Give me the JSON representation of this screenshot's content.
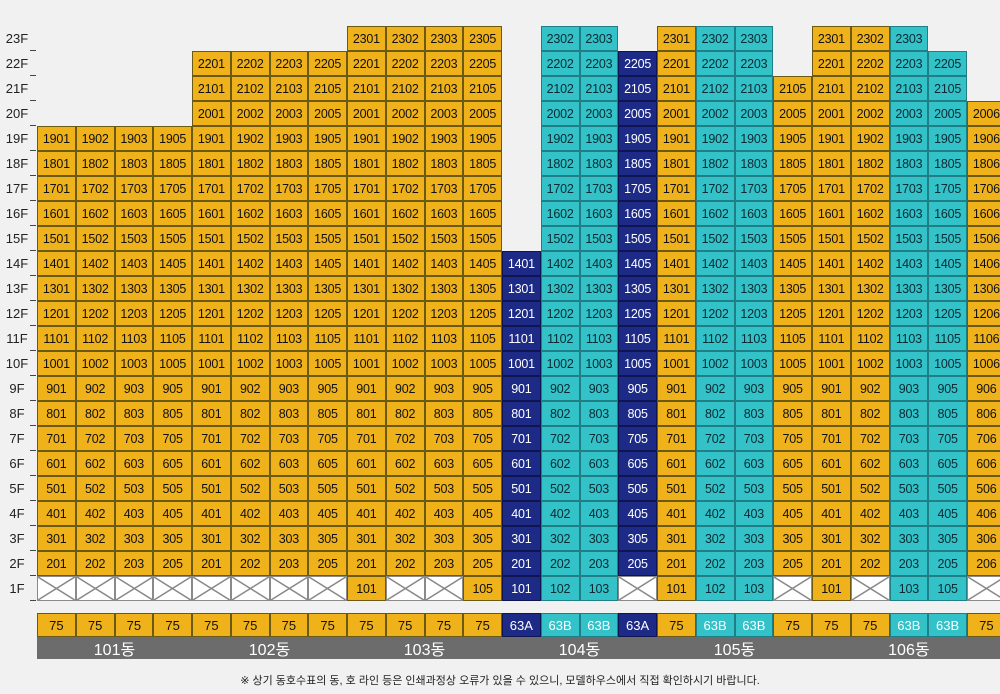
{
  "floor_labels": [
    "1F",
    "2F",
    "3F",
    "4F",
    "5F",
    "6F",
    "7F",
    "8F",
    "9F",
    "10F",
    "11F",
    "12F",
    "13F",
    "14F",
    "15F",
    "16F",
    "17F",
    "18F",
    "19F",
    "20F",
    "21F",
    "22F",
    "23F"
  ],
  "colors": {
    "orange": "#f0b21b",
    "cyan": "#33c2c8",
    "navy": "#1d2b86",
    "empty": "#ffffff",
    "name_bar": "#6c6c6c"
  },
  "buildings": [
    {
      "name": "101동",
      "columns": [
        {
          "line": "01",
          "type": "75",
          "unit_type_color": "o",
          "top": 19,
          "color": "o",
          "first_floor": "x"
        },
        {
          "line": "02",
          "type": "75",
          "unit_type_color": "o",
          "top": 19,
          "color": "o",
          "first_floor": "x"
        },
        {
          "line": "03",
          "type": "75",
          "unit_type_color": "o",
          "top": 19,
          "color": "o",
          "first_floor": "x"
        },
        {
          "line": "05",
          "type": "75",
          "unit_type_color": "o",
          "top": 19,
          "color": "o",
          "first_floor": "x"
        }
      ]
    },
    {
      "name": "102동",
      "columns": [
        {
          "line": "01",
          "type": "75",
          "unit_type_color": "o",
          "top": 22,
          "color": "o",
          "first_floor": "x"
        },
        {
          "line": "02",
          "type": "75",
          "unit_type_color": "o",
          "top": 22,
          "color": "o",
          "first_floor": "x"
        },
        {
          "line": "03",
          "type": "75",
          "unit_type_color": "o",
          "top": 22,
          "color": "o",
          "first_floor": "x"
        },
        {
          "line": "05",
          "type": "75",
          "unit_type_color": "o",
          "top": 22,
          "color": "o",
          "first_floor": "x"
        }
      ]
    },
    {
      "name": "103동",
      "columns": [
        {
          "line": "01",
          "type": "75",
          "unit_type_color": "o",
          "top": 23,
          "color": "o",
          "first_floor": "unit"
        },
        {
          "line": "02",
          "type": "75",
          "unit_type_color": "o",
          "top": 23,
          "color": "o",
          "first_floor": "x"
        },
        {
          "line": "03",
          "type": "75",
          "unit_type_color": "o",
          "top": 23,
          "color": "o",
          "first_floor": "x"
        },
        {
          "line": "05",
          "type": "75",
          "unit_type_color": "o",
          "top": 23,
          "color": "o",
          "first_floor": "unit"
        }
      ]
    },
    {
      "name": "104동",
      "columns": [
        {
          "line": "01",
          "type": "63A",
          "unit_type_color": "n",
          "top": 14,
          "color": "n",
          "first_floor": "unit"
        },
        {
          "line": "02",
          "type": "63B",
          "unit_type_color": "c",
          "top": 23,
          "color": "c",
          "first_floor": "unit"
        },
        {
          "line": "03",
          "type": "63B",
          "unit_type_color": "c",
          "top": 23,
          "color": "c",
          "first_floor": "unit"
        },
        {
          "line": "05",
          "type": "63A",
          "unit_type_color": "n",
          "top": 22,
          "color": "n",
          "first_floor": "x"
        }
      ]
    },
    {
      "name": "105동",
      "columns": [
        {
          "line": "01",
          "type": "75",
          "unit_type_color": "o",
          "top": 23,
          "color": "o",
          "first_floor": "unit"
        },
        {
          "line": "02",
          "type": "63B",
          "unit_type_color": "c",
          "top": 23,
          "color": "c",
          "first_floor": "unit"
        },
        {
          "line": "03",
          "type": "63B",
          "unit_type_color": "c",
          "top": 23,
          "color": "c",
          "first_floor": "unit"
        },
        {
          "line": "05",
          "type": "75",
          "unit_type_color": "o",
          "top": 21,
          "color": "o",
          "first_floor": "x"
        }
      ]
    },
    {
      "name": "106동",
      "columns": [
        {
          "line": "01",
          "type": "75",
          "unit_type_color": "o",
          "top": 23,
          "color": "o",
          "first_floor": "unit"
        },
        {
          "line": "02",
          "type": "75",
          "unit_type_color": "o",
          "top": 23,
          "color": "o",
          "first_floor": "x"
        },
        {
          "line": "03",
          "type": "63B",
          "unit_type_color": "c",
          "top": 23,
          "color": "c",
          "first_floor": "unit"
        },
        {
          "line": "05",
          "type": "63B",
          "unit_type_color": "c",
          "top": 22,
          "color": "c",
          "first_floor": "unit"
        },
        {
          "line": "06",
          "type": "75",
          "unit_type_color": "o",
          "top": 20,
          "color": "o",
          "first_floor": "x"
        }
      ]
    }
  ],
  "footnote": "※ 상기 동호수표의 동, 호 라인 등은 인쇄과정상 오류가 있을 수 있으니, 모델하우스에서 직접 확인하시기 바랍니다."
}
